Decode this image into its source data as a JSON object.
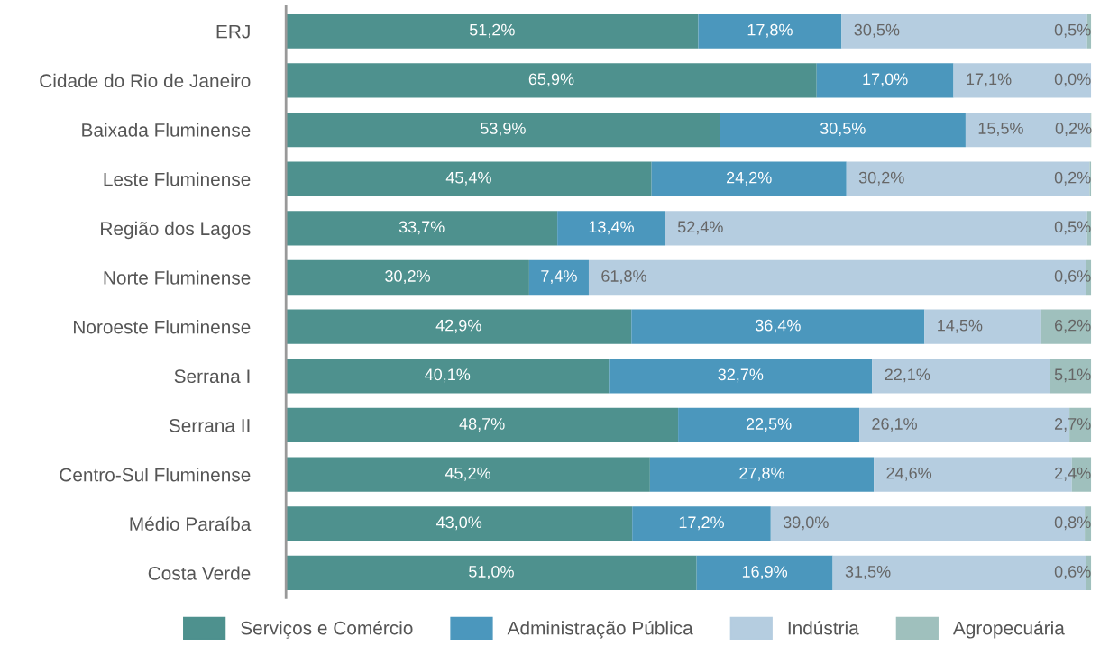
{
  "chart_data": {
    "type": "bar",
    "orientation": "horizontal",
    "stacked": true,
    "xlim": [
      0,
      100
    ],
    "tick_labels": "y",
    "grid": false,
    "legend": "bottom",
    "categories": [
      "ERJ",
      "Cidade do Rio de Janeiro",
      "Baixada Fluminense",
      "Leste Fluminense",
      "Região dos Lagos",
      "Norte Fluminense",
      "Noroeste Fluminense",
      "Serrana I",
      "Serrana II",
      "Centro-Sul Fluminense",
      "Médio Paraíba",
      "Costa Verde"
    ],
    "series": [
      {
        "name": "Serviços e Comércio",
        "color": "#4e918e",
        "values": [
          51.2,
          65.9,
          53.9,
          45.4,
          33.7,
          30.2,
          42.9,
          40.1,
          48.7,
          45.2,
          43.0,
          51.0
        ],
        "value_labels": [
          "51,2%",
          "65,9%",
          "53,9%",
          "45,4%",
          "33,7%",
          "30,2%",
          "42,9%",
          "40,1%",
          "48,7%",
          "45,2%",
          "43,0%",
          "51,0%"
        ]
      },
      {
        "name": "Administração Pública",
        "color": "#4b97bd",
        "values": [
          17.8,
          17.0,
          30.5,
          24.2,
          13.4,
          7.4,
          36.4,
          32.7,
          22.5,
          27.8,
          17.2,
          16.9
        ],
        "value_labels": [
          "17,8%",
          "17,0%",
          "30,5%",
          "24,2%",
          "13,4%",
          "7,4%",
          "36,4%",
          "32,7%",
          "22,5%",
          "27,8%",
          "17,2%",
          "16,9%"
        ]
      },
      {
        "name": "Indústria",
        "color": "#b5cde0",
        "values": [
          30.5,
          17.1,
          15.5,
          30.2,
          52.4,
          61.8,
          14.5,
          22.1,
          26.1,
          24.6,
          39.0,
          31.5
        ],
        "value_labels": [
          "30,5%",
          "17,1%",
          "15,5%",
          "30,2%",
          "52,4%",
          "61,8%",
          "14,5%",
          "22,1%",
          "26,1%",
          "24,6%",
          "39,0%",
          "31,5%"
        ]
      },
      {
        "name": "Agropecuária",
        "color": "#9fc0bd",
        "values": [
          0.5,
          0.0,
          0.2,
          0.2,
          0.5,
          0.6,
          6.2,
          5.1,
          2.7,
          2.4,
          0.8,
          0.6
        ],
        "value_labels": [
          "0,5%",
          "0,0%",
          "0,2%",
          "0,2%",
          "0,5%",
          "0,6%",
          "6,2%",
          "5,1%",
          "2,7%",
          "2,4%",
          "0,8%",
          "0,6%"
        ]
      }
    ]
  }
}
